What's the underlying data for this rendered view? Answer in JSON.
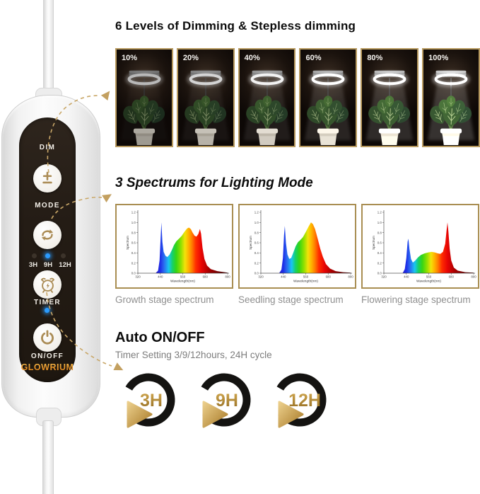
{
  "brand": {
    "name": "GLOWRIUM"
  },
  "controller": {
    "dim_label": "DIM",
    "mode_label": "MODE",
    "led_labels": [
      "3H",
      "9H",
      "12H"
    ],
    "active_led": "9H",
    "timer_label": "TIMER",
    "onoff_label": "ON/OFF"
  },
  "sections": {
    "dimming": {
      "title": "6 Levels of Dimming & Stepless dimming",
      "levels": [
        "10%",
        "20%",
        "40%",
        "60%",
        "80%",
        "100%"
      ]
    },
    "spectrums": {
      "title": "3 Spectrums for Lighting Mode",
      "captions": [
        "Growth stage spectrum",
        "Seedling stage spectrum",
        "Flowering stage spectrum"
      ]
    },
    "timer": {
      "title": "Auto ON/OFF",
      "subtitle": "Timer Setting 3/9/12hours, 24H cycle",
      "options": [
        "3H",
        "9H",
        "12H"
      ]
    }
  },
  "colors": {
    "gold": "#c0a063",
    "frame_gold": "#b89a5f",
    "brand_gold": "#e8952a",
    "panel_dark": "#241c15",
    "led_blue": "#2b9bff"
  },
  "chart_data": [
    {
      "type": "area",
      "title": "Growth stage spectrum",
      "xlabel": "Wavelength(nm)",
      "ylabel": "Spectrum",
      "xlim": [
        320,
        800
      ],
      "ylim": [
        0,
        1.2
      ],
      "xticks": [
        320,
        440,
        560,
        680,
        800
      ],
      "yticks": [
        0,
        0.2,
        0.4,
        0.6,
        0.8,
        1.0,
        1.2
      ],
      "points": [
        [
          415,
          0
        ],
        [
          428,
          0.05
        ],
        [
          436,
          0.25
        ],
        [
          442,
          0.72
        ],
        [
          446,
          1.0
        ],
        [
          451,
          0.62
        ],
        [
          458,
          0.42
        ],
        [
          468,
          0.34
        ],
        [
          478,
          0.32
        ],
        [
          490,
          0.37
        ],
        [
          502,
          0.46
        ],
        [
          514,
          0.56
        ],
        [
          526,
          0.63
        ],
        [
          540,
          0.68
        ],
        [
          555,
          0.74
        ],
        [
          570,
          0.82
        ],
        [
          583,
          0.88
        ],
        [
          593,
          0.9
        ],
        [
          603,
          0.87
        ],
        [
          613,
          0.8
        ],
        [
          623,
          0.74
        ],
        [
          633,
          0.72
        ],
        [
          643,
          0.77
        ],
        [
          652,
          0.87
        ],
        [
          658,
          0.78
        ],
        [
          666,
          0.5
        ],
        [
          676,
          0.28
        ],
        [
          690,
          0.15
        ],
        [
          710,
          0.08
        ],
        [
          745,
          0.04
        ],
        [
          800,
          0.01
        ]
      ]
    },
    {
      "type": "area",
      "title": "Seedling stage spectrum",
      "xlabel": "Wavelength(nm)",
      "ylabel": "Spectrum",
      "xlim": [
        320,
        800
      ],
      "ylim": [
        0,
        1.2
      ],
      "xticks": [
        320,
        440,
        560,
        680,
        800
      ],
      "yticks": [
        0,
        0.2,
        0.4,
        0.6,
        0.8,
        1.0,
        1.2
      ],
      "points": [
        [
          418,
          0
        ],
        [
          430,
          0.07
        ],
        [
          438,
          0.3
        ],
        [
          444,
          0.75
        ],
        [
          448,
          0.93
        ],
        [
          454,
          0.6
        ],
        [
          462,
          0.37
        ],
        [
          472,
          0.28
        ],
        [
          482,
          0.3
        ],
        [
          494,
          0.41
        ],
        [
          506,
          0.53
        ],
        [
          518,
          0.61
        ],
        [
          530,
          0.65
        ],
        [
          545,
          0.71
        ],
        [
          560,
          0.81
        ],
        [
          575,
          0.92
        ],
        [
          588,
          1.0
        ],
        [
          598,
          0.97
        ],
        [
          610,
          0.87
        ],
        [
          624,
          0.68
        ],
        [
          638,
          0.48
        ],
        [
          652,
          0.32
        ],
        [
          668,
          0.18
        ],
        [
          690,
          0.09
        ],
        [
          720,
          0.04
        ],
        [
          760,
          0.02
        ],
        [
          800,
          0.01
        ]
      ]
    },
    {
      "type": "area",
      "title": "Flowering stage spectrum",
      "xlabel": "Wavelength(nm)",
      "ylabel": "Spectrum",
      "xlim": [
        320,
        800
      ],
      "ylim": [
        0,
        1.2
      ],
      "xticks": [
        320,
        440,
        560,
        680,
        800
      ],
      "yticks": [
        0,
        0.2,
        0.4,
        0.6,
        0.8,
        1.0,
        1.2
      ],
      "points": [
        [
          420,
          0
        ],
        [
          432,
          0.08
        ],
        [
          440,
          0.3
        ],
        [
          447,
          0.62
        ],
        [
          451,
          0.68
        ],
        [
          457,
          0.48
        ],
        [
          465,
          0.28
        ],
        [
          475,
          0.21
        ],
        [
          488,
          0.25
        ],
        [
          502,
          0.31
        ],
        [
          518,
          0.36
        ],
        [
          538,
          0.39
        ],
        [
          558,
          0.41
        ],
        [
          575,
          0.42
        ],
        [
          592,
          0.41
        ],
        [
          608,
          0.39
        ],
        [
          622,
          0.38
        ],
        [
          636,
          0.42
        ],
        [
          648,
          0.58
        ],
        [
          655,
          0.83
        ],
        [
          660,
          1.0
        ],
        [
          665,
          0.82
        ],
        [
          672,
          0.48
        ],
        [
          680,
          0.25
        ],
        [
          694,
          0.11
        ],
        [
          715,
          0.05
        ],
        [
          755,
          0.02
        ],
        [
          800,
          0.01
        ]
      ]
    }
  ]
}
